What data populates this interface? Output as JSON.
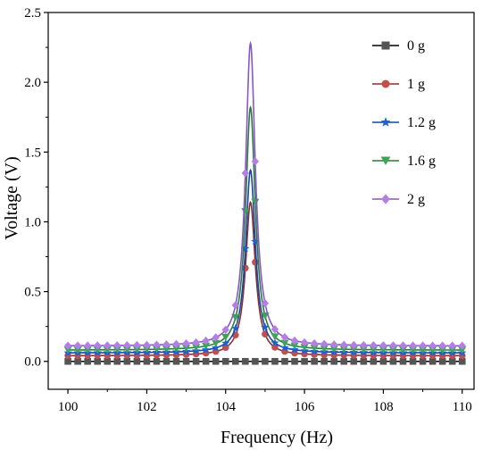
{
  "chart_data": {
    "type": "line",
    "title": "",
    "xlabel": "Frequency (Hz)",
    "ylabel": "Voltage (V)",
    "xlim": [
      99.5,
      110.3
    ],
    "ylim": [
      -0.2,
      2.5
    ],
    "xticks": [
      100,
      102,
      104,
      106,
      108,
      110
    ],
    "yticks": [
      0.0,
      0.5,
      1.0,
      1.5,
      2.0,
      2.5
    ],
    "xtick_labels": [
      "100",
      "102",
      "104",
      "106",
      "108",
      "110"
    ],
    "ytick_labels": [
      "0.0",
      "0.5",
      "1.0",
      "1.5",
      "2.0",
      "2.5"
    ],
    "legend_placement": "right",
    "resonance_frequency": 104.63,
    "series": [
      {
        "name": "0 g",
        "marker": "square",
        "color": "#555555",
        "line_color": "#000000",
        "peak": 0.0,
        "baseline": 0.0
      },
      {
        "name": "1 g",
        "marker": "circle",
        "color": "#c0504d",
        "line_color": "#8b2e2e",
        "peak": 1.14,
        "baseline": 0.04
      },
      {
        "name": "1.2 g",
        "marker": "star",
        "color": "#1f5fd6",
        "line_color": "#1a44a8",
        "peak": 1.37,
        "baseline": 0.06
      },
      {
        "name": "1.6 g",
        "marker": "triangle-down",
        "color": "#3aa653",
        "line_color": "#2a7d3d",
        "peak": 1.82,
        "baseline": 0.08
      },
      {
        "name": "2 g",
        "marker": "diamond",
        "color": "#b57ee6",
        "line_color": "#8a55c4",
        "peak": 2.28,
        "baseline": 0.11
      }
    ]
  }
}
